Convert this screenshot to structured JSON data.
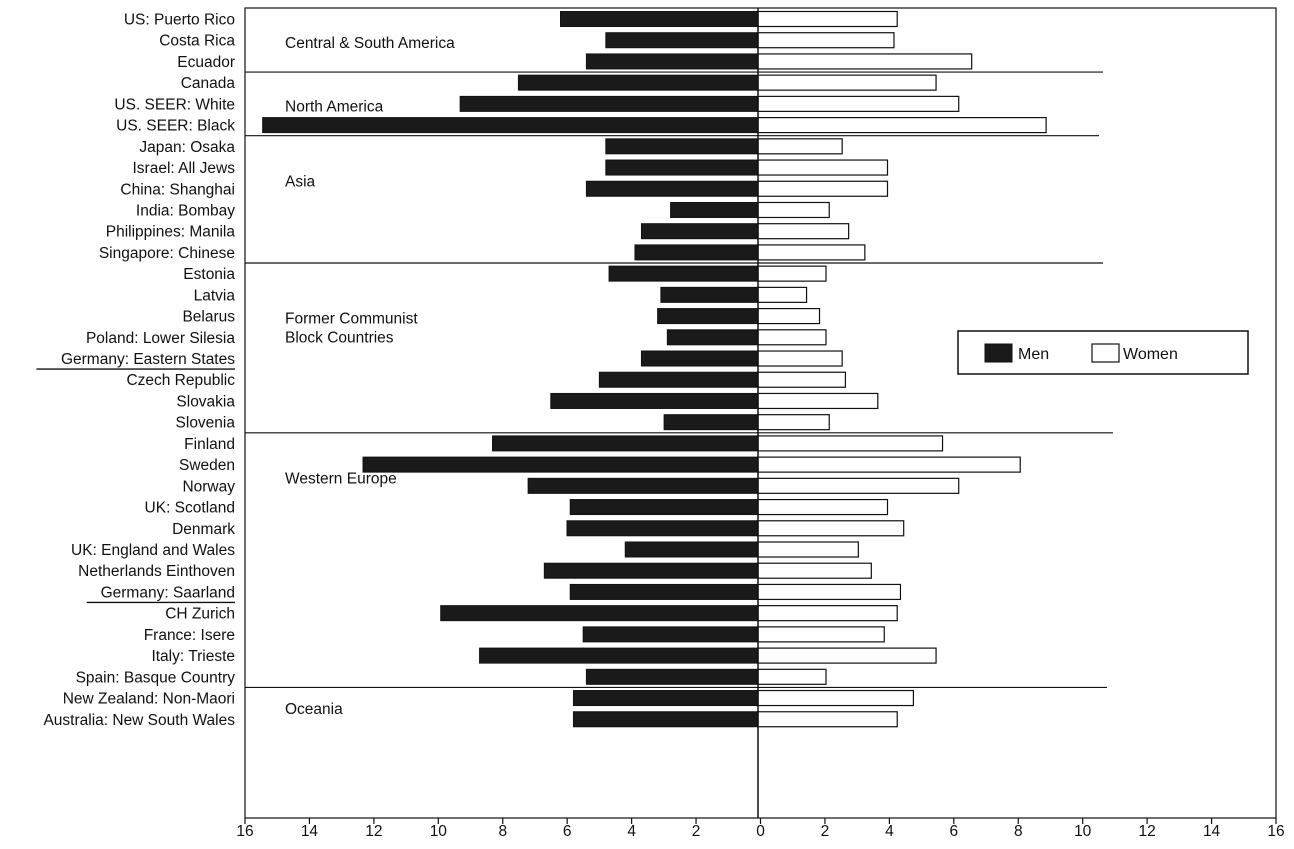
{
  "chart_data": {
    "type": "bar",
    "orientation": "horizontal",
    "title": "",
    "xlabel": "",
    "ylabel": "",
    "xlim": [
      -16,
      16
    ],
    "x_ticks": [
      "16",
      "14",
      "12",
      "10",
      "8",
      "6",
      "4",
      "2",
      "0",
      "2",
      "4",
      "6",
      "8",
      "10",
      "12",
      "14",
      "16"
    ],
    "categories": [
      "US: Puerto Rico",
      "Costa Rica",
      "Ecuador",
      "Canada",
      "US. SEER: White",
      "US. SEER: Black",
      "Japan: Osaka",
      "Israel: All Jews",
      "China: Shanghai",
      "India: Bombay",
      "Philippines: Manila",
      "Singapore: Chinese",
      "Estonia",
      "Latvia",
      "Belarus",
      "Poland: Lower Silesia",
      "Germany: Eastern States",
      "Czech Republic",
      "Slovakia",
      "Slovenia",
      "Finland",
      "Sweden",
      "Norway",
      "UK: Scotland",
      "Denmark",
      "UK: England and Wales",
      "Netherlands Einthoven",
      "Germany: Saarland",
      "CH Zurich",
      "France: Isere",
      "Italy: Trieste",
      "Spain: Basque Country",
      "New Zealand: Non-Maori",
      "Australia: New South Wales"
    ],
    "underlined_categories": [
      "Germany: Eastern States",
      "Germany: Saarland"
    ],
    "groups": [
      {
        "name": "Central & South America",
        "count": 3
      },
      {
        "name": "North America",
        "count": 3
      },
      {
        "name": "Asia",
        "count": 6
      },
      {
        "name": "Former Communist\nBlock Countries",
        "count": 8
      },
      {
        "name": "Western Europe",
        "count": 12
      },
      {
        "name": "Oceania",
        "count": 2
      }
    ],
    "series": [
      {
        "name": "Men",
        "color": "#1a1a1a",
        "direction": "left",
        "values": [
          6.1,
          4.7,
          5.3,
          7.4,
          9.2,
          15.3,
          4.7,
          4.7,
          5.3,
          2.7,
          3.6,
          3.8,
          4.6,
          3.0,
          3.1,
          2.8,
          3.6,
          4.9,
          6.4,
          2.9,
          8.2,
          12.2,
          7.1,
          5.8,
          5.9,
          4.1,
          6.6,
          5.8,
          9.8,
          5.4,
          8.6,
          5.3,
          5.7,
          5.7
        ]
      },
      {
        "name": "Women",
        "color": "#ffffff",
        "direction": "right",
        "values": [
          4.3,
          4.2,
          6.6,
          5.5,
          6.2,
          8.9,
          2.6,
          4.0,
          4.0,
          2.2,
          2.8,
          3.3,
          2.1,
          1.5,
          1.9,
          2.1,
          2.6,
          2.7,
          3.7,
          2.2,
          5.7,
          8.1,
          6.2,
          4.0,
          4.5,
          3.1,
          3.5,
          4.4,
          4.3,
          3.9,
          5.5,
          2.1,
          4.8,
          4.3
        ]
      }
    ],
    "grid": false,
    "legend": {
      "position": "right-middle",
      "entries": [
        "Men",
        "Women"
      ]
    }
  }
}
